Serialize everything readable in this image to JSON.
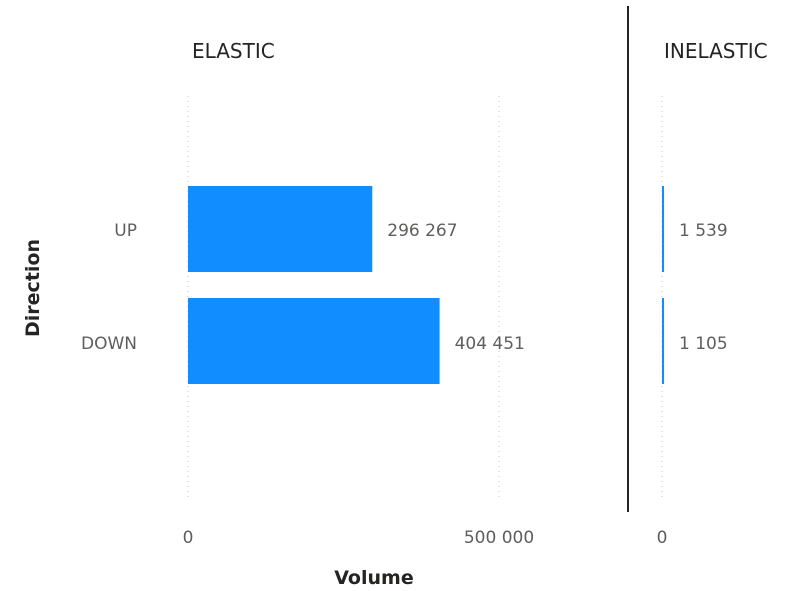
{
  "chart_data": {
    "type": "bar",
    "orientation": "horizontal",
    "categories": [
      "UP",
      "DOWN"
    ],
    "ylabel": "Direction",
    "xlabel": "Volume",
    "panels": [
      {
        "title": "ELASTIC",
        "values": [
          296267,
          404451
        ],
        "value_labels": [
          "296 267",
          "404 451"
        ],
        "xlim": [
          0,
          500000
        ],
        "x_ticks": [
          0,
          500000
        ],
        "x_tick_labels": [
          "0",
          "500 000"
        ]
      },
      {
        "title": "INELASTIC",
        "values": [
          1539,
          1105
        ],
        "value_labels": [
          "1 539",
          "1 105"
        ],
        "xlim": [
          0,
          500000
        ],
        "x_ticks": [
          0
        ],
        "x_tick_labels": [
          "0"
        ]
      }
    ],
    "bar_color": "#118DFF",
    "grid": true,
    "legend": "none"
  }
}
